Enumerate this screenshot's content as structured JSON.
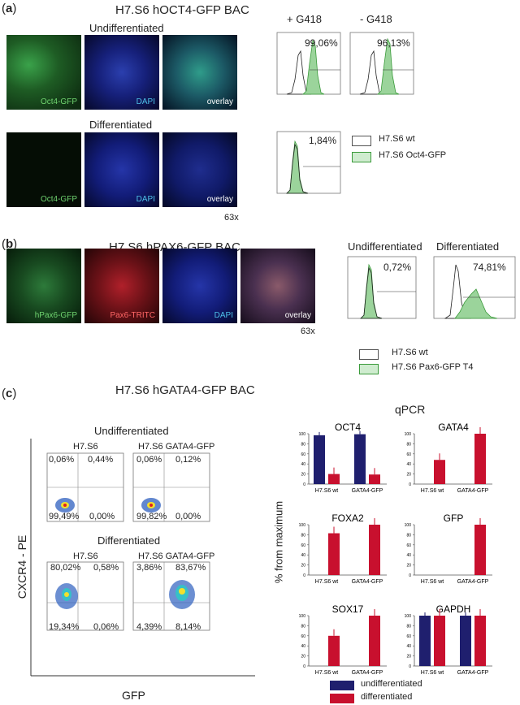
{
  "panel_a": {
    "label_open": "(",
    "label_letter": "a",
    "label_close": ")",
    "title": "H7.S6 hOCT4-GFP BAC",
    "undiff": "Undifferentiated",
    "diff": "Differentiated",
    "tiles_top": [
      "Oct4-GFP",
      "DAPI",
      "overlay"
    ],
    "tiles_bottom": [
      "Oct4-GFP",
      "DAPI",
      "overlay"
    ],
    "mag": "63x",
    "flow_headers": [
      "+ G418",
      "- G418"
    ],
    "flow_pcts": [
      "99,06%",
      "96,13%",
      "1,84%"
    ],
    "legend": [
      "H7.S6 wt",
      "H7.S6 Oct4-GFP"
    ]
  },
  "panel_b": {
    "label_open": "(",
    "label_letter": "b",
    "label_close": ")",
    "title": "H7.S6 hPAX6-GFP BAC",
    "tiles": [
      "hPax6-GFP",
      "Pax6-TRITC",
      "DAPI",
      "overlay"
    ],
    "mag": "63x",
    "flow_headers": [
      "Undifferentiated",
      "Differentiated"
    ],
    "flow_pcts": [
      "0,72%",
      "74,81%"
    ],
    "legend": [
      "H7.S6 wt",
      "H7.S6 Pax6-GFP T4"
    ]
  },
  "panel_c": {
    "label_open": "(",
    "label_letter": "c",
    "label_close": ")",
    "title": "H7.S6 hGATA4-GFP BAC",
    "undiff": "Undifferentiated",
    "diff": "Differentiated",
    "col_labels": [
      "H7.S6",
      "H7.S6 GATA4-GFP",
      "H7.S6",
      "H7.S6 GATA4-GFP"
    ],
    "quads_undiff_1": [
      "0,06%",
      "0,44%",
      "99,49%",
      "0,00%"
    ],
    "quads_undiff_2": [
      "0,06%",
      "0,12%",
      "99,82%",
      "0,00%"
    ],
    "quads_diff_1": [
      "80,02%",
      "0,58%",
      "19,34%",
      "0,06%"
    ],
    "quads_diff_2": [
      "3,86%",
      "83,67%",
      "4,39%",
      "8,14%"
    ],
    "y_axis": "CXCR4 - PE",
    "x_axis": "GFP",
    "qpcr_title": "qPCR",
    "qpcr_ylabel": "% from maximum",
    "legend": [
      "undifferentiated",
      "differentiated"
    ]
  },
  "colors": {
    "undiff": "#1f1f6e",
    "diff": "#c8102e",
    "gfp": "#9bd49b"
  },
  "chart_data": {
    "type": "bar",
    "categories": [
      "H7.S6 wt",
      "GATA4-GFP"
    ],
    "ylim": [
      0,
      100
    ],
    "yticks": [
      0,
      20,
      40,
      60,
      80,
      100
    ],
    "series_names": [
      "undifferentiated",
      "differentiated"
    ],
    "subplots": [
      {
        "title": "OCT4",
        "undifferentiated": [
          97,
          99
        ],
        "differentiated": [
          20,
          19
        ]
      },
      {
        "title": "GATA4",
        "undifferentiated": [
          0,
          0
        ],
        "differentiated": [
          48,
          100
        ]
      },
      {
        "title": "FOXA2",
        "undifferentiated": [
          0,
          0
        ],
        "differentiated": [
          83,
          100
        ]
      },
      {
        "title": "GFP",
        "undifferentiated": [
          0,
          0
        ],
        "differentiated": [
          0,
          100
        ]
      },
      {
        "title": "SOX17",
        "undifferentiated": [
          0,
          0
        ],
        "differentiated": [
          60,
          100
        ]
      },
      {
        "title": "GAPDH",
        "undifferentiated": [
          100,
          100
        ],
        "differentiated": [
          100,
          100
        ]
      }
    ]
  }
}
